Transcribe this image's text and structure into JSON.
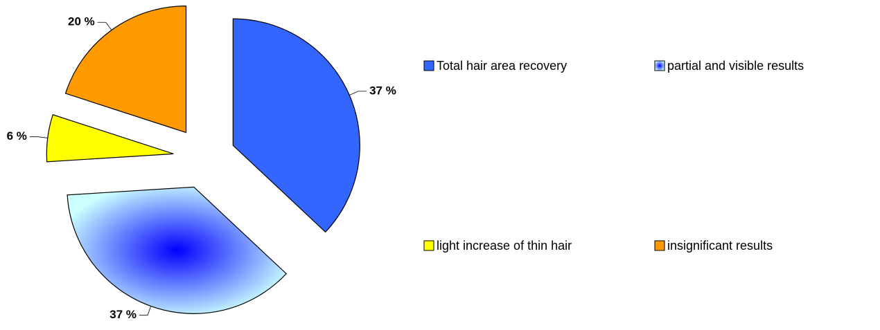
{
  "chart_data": {
    "type": "pie",
    "categories": [
      "Total hair area recovery",
      "partial and visible results",
      "light increase of thin hair",
      "insignificant results"
    ],
    "values": [
      37,
      37,
      6,
      20
    ],
    "value_labels": [
      "37 %",
      "37 %",
      "6 %",
      "20 %"
    ],
    "colors": [
      "#3366ff",
      "#ccffff",
      "#ffff00",
      "#ff9900"
    ],
    "gradient_centers": [
      null,
      "#0000ff",
      null,
      null
    ],
    "legend": "right"
  }
}
